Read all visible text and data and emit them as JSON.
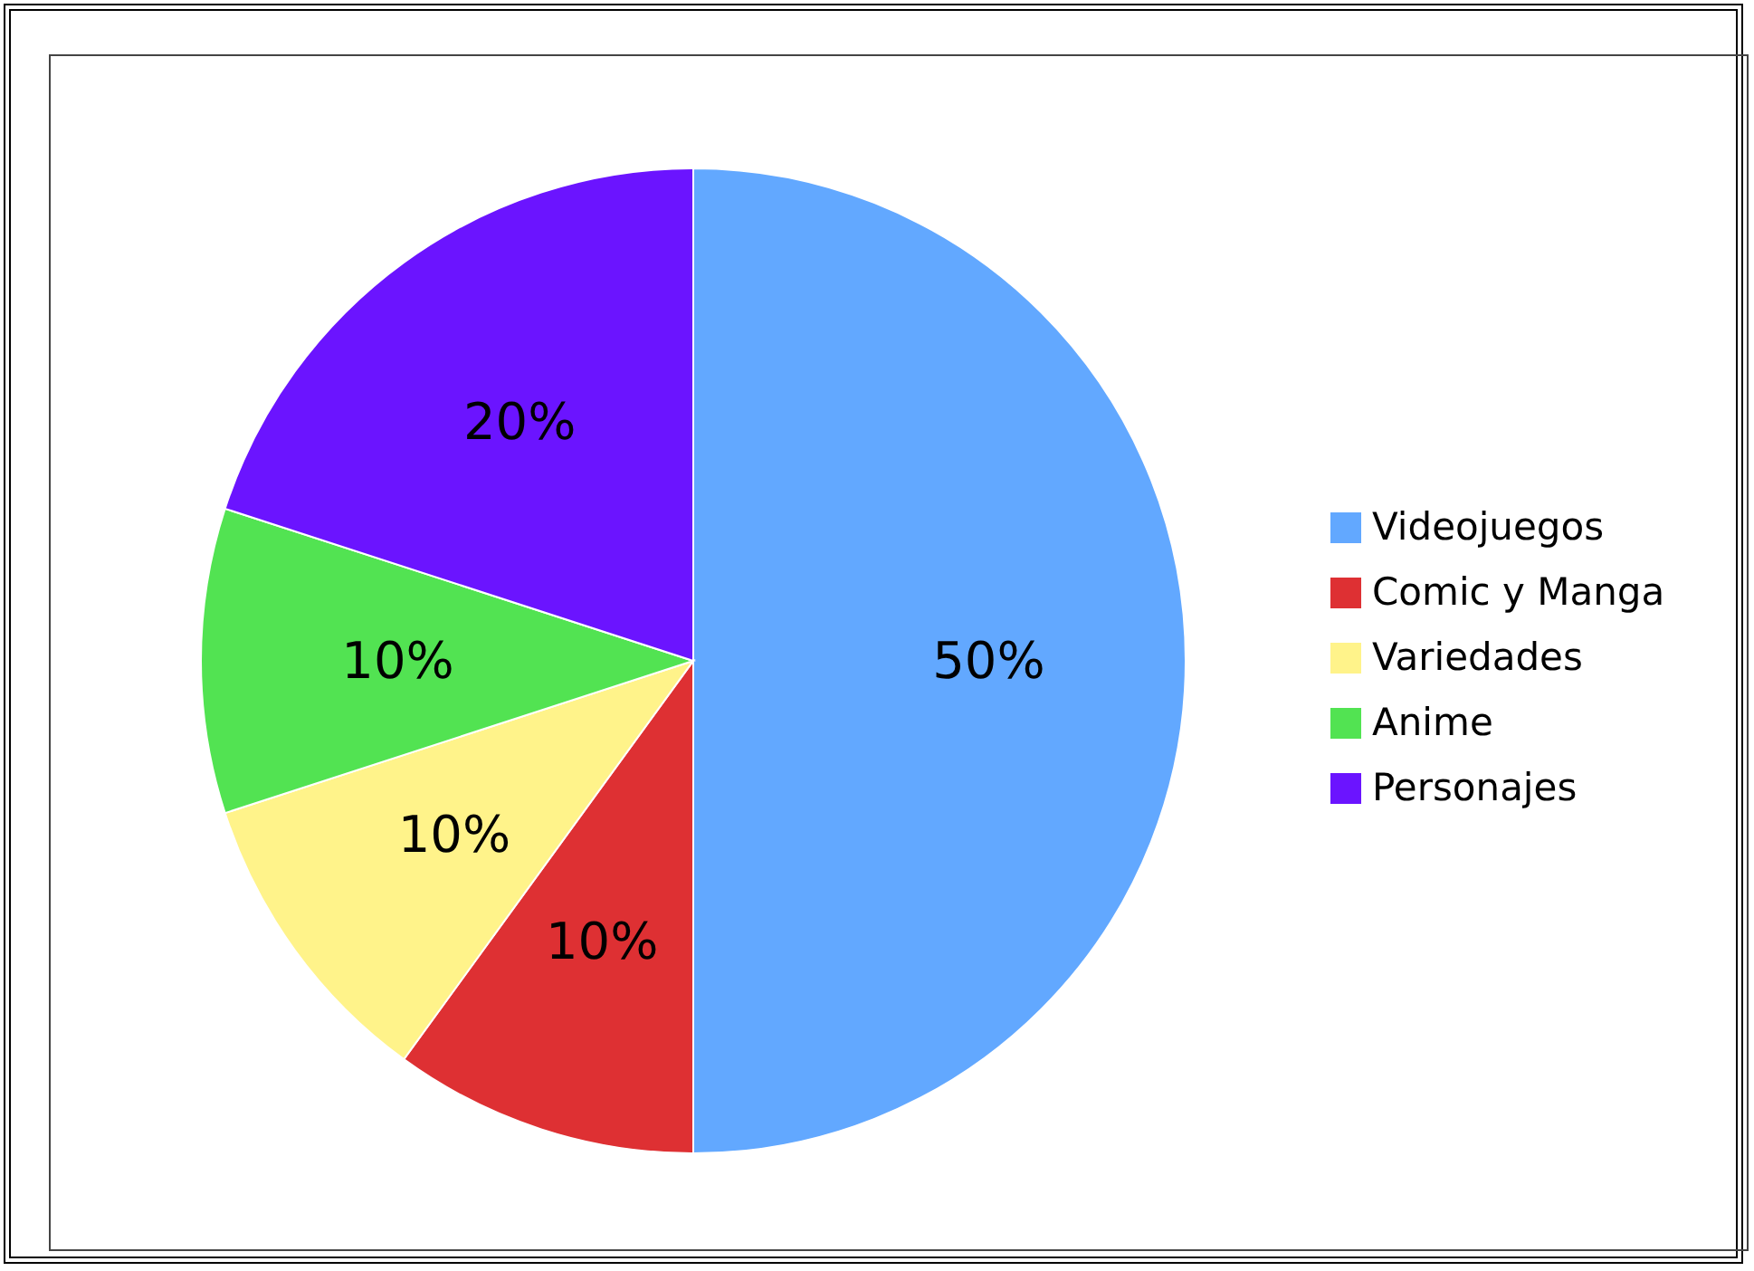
{
  "chart_data": {
    "type": "pie",
    "categories": [
      "Videojuegos",
      "Comic y Manga",
      "Variedades",
      "Anime",
      "Personajes"
    ],
    "values": [
      50,
      10,
      10,
      10,
      20
    ],
    "colors": [
      "#62a8ff",
      "#de3033",
      "#fff38a",
      "#52e352",
      "#6b14ff"
    ],
    "value_labels": [
      "50%",
      "10%",
      "10%",
      "10%",
      "20%"
    ],
    "legend": "right"
  }
}
